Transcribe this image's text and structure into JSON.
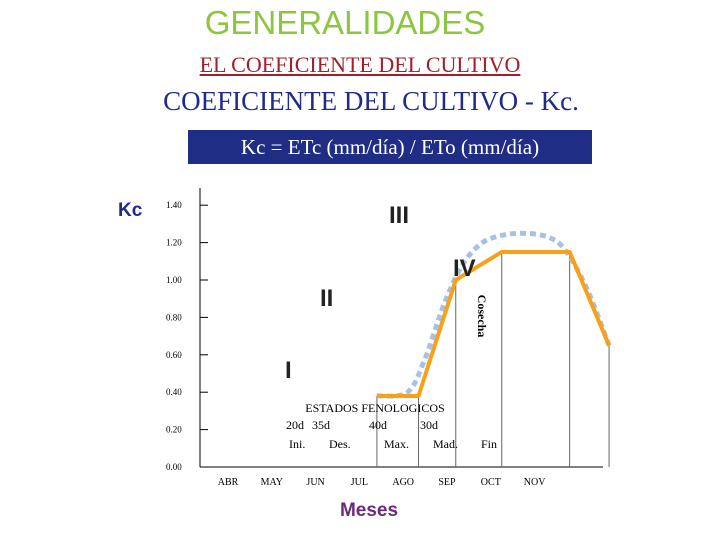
{
  "header": {
    "title": "GENERALIDADES",
    "subtitle": "EL COEFICIENTE DEL CULTIVO",
    "heading": "COEFICIENTE DEL CULTIVO - Kc.",
    "formula": "Kc = ETc (mm/día) / ETo (mm/día)"
  },
  "colors": {
    "title": "#8cc63f",
    "subtitle": "#a21f2a",
    "heading": "#1f2a8c",
    "formula_bg": "#1f2d85",
    "kc_line": "#f7a11a",
    "dotted_curve": "#a8c0e6"
  },
  "chart_data": {
    "type": "line",
    "ylabel": "Kc",
    "xlabel": "Meses",
    "ylim": [
      0,
      1.5
    ],
    "y_ticks": [
      "0.00",
      "0.20",
      "0.40",
      "0.60",
      "0.80",
      "1.00",
      "1.20",
      "1.40"
    ],
    "x_ticks": [
      "ABR",
      "MAY",
      "JUN",
      "JUL",
      "AGO",
      "SEP",
      "OCT",
      "NOV"
    ],
    "series": [
      {
        "x": [
          3.4,
          4.35,
          5.2,
          6.25,
          7.8,
          8.7
        ],
        "y": [
          0.38,
          0.38,
          1.0,
          1.15,
          1.15,
          0.65
        ]
      }
    ],
    "dotted_curve": {
      "x": [
        3.4,
        4.1,
        4.5,
        4.9,
        5.3,
        5.7,
        6.1,
        6.7,
        7.3,
        7.7,
        8.2,
        8.7
      ],
      "y": [
        0.38,
        0.4,
        0.58,
        0.85,
        1.06,
        1.18,
        1.23,
        1.25,
        1.23,
        1.16,
        0.95,
        0.65
      ]
    },
    "stages": {
      "title": "ESTADOS FENOLOGICOS",
      "durations": [
        "20d",
        "35d",
        "40d",
        "30d"
      ],
      "names": [
        "Ini.",
        "Des.",
        "Max.",
        "Mad."
      ],
      "end": "Fin",
      "harvest": "Cosecha",
      "roman": [
        "I",
        "II",
        "III",
        "IV"
      ],
      "boundaries_x": [
        3.4,
        4.35,
        5.2,
        6.25,
        7.8,
        8.7
      ]
    }
  }
}
